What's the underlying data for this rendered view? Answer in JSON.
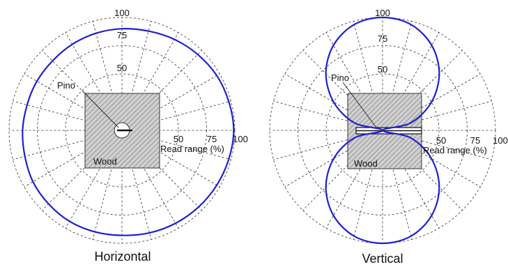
{
  "chart_data": [
    {
      "type": "polar-line",
      "title": "Horizontal",
      "tick_labels": [
        "50",
        "75",
        "100"
      ],
      "top_tick_labels": [
        "50",
        "75",
        "100"
      ],
      "axis_label": "Read range (%)",
      "radial_range": [
        0,
        100
      ],
      "rings": [
        25,
        50,
        75,
        100
      ],
      "spoke_step_deg": 15,
      "grid": true,
      "annotations": [
        "Pino",
        "Wood"
      ],
      "series": [
        {
          "color": "#1f1fd0",
          "angles_deg": [
            0,
            15,
            30,
            45,
            60,
            75,
            90,
            105,
            120,
            135,
            150,
            165,
            180,
            195,
            210,
            225,
            240,
            255,
            270,
            285,
            300,
            315,
            330,
            345
          ],
          "values": [
            99,
            98,
            97,
            95,
            93,
            91,
            90,
            89,
            88,
            87,
            87,
            87,
            88,
            89,
            91,
            92,
            93,
            93,
            93,
            94,
            95,
            96,
            97,
            98
          ]
        }
      ]
    },
    {
      "type": "polar-line",
      "title": "Vertical",
      "tick_labels": [
        "50",
        "75",
        "100"
      ],
      "top_tick_labels": [
        "50",
        "75",
        "100"
      ],
      "axis_label": "Read range (%)",
      "radial_range": [
        0,
        100
      ],
      "rings": [
        25,
        50,
        75,
        100
      ],
      "spoke_step_deg": 15,
      "grid": true,
      "annotations": [
        "Pino",
        "Wood"
      ],
      "series": [
        {
          "color": "#1f1fd0",
          "angles_deg": [
            0,
            15,
            30,
            45,
            60,
            75,
            90,
            105,
            120,
            135,
            150,
            165,
            180,
            195,
            210,
            225,
            240,
            255,
            270,
            285,
            300,
            315,
            330,
            345
          ],
          "values": [
            0,
            26,
            50,
            71,
            87,
            97,
            100,
            97,
            87,
            71,
            50,
            26,
            0,
            26,
            50,
            71,
            87,
            97,
            100,
            97,
            87,
            71,
            50,
            26
          ]
        }
      ]
    }
  ]
}
